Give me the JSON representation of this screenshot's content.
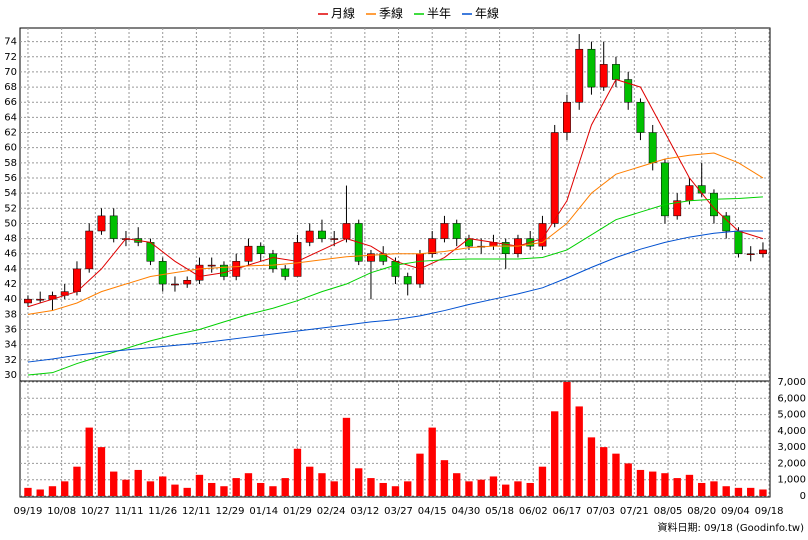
{
  "chart_data": {
    "type": "candlestick",
    "source": "資料日期: 09/18 (Goodinfo.tw)",
    "up_color": "#ff0000",
    "down_color": "#00c000",
    "volume_color": "#ff0000",
    "grid": true,
    "xlim": [
      -2.6,
      242.3
    ],
    "xticks": [
      {
        "value": 0,
        "label": "09/19"
      },
      {
        "value": 11,
        "label": "10/08"
      },
      {
        "value": 22,
        "label": "10/27"
      },
      {
        "value": 33,
        "label": "11/11"
      },
      {
        "value": 44,
        "label": "11/26"
      },
      {
        "value": 55,
        "label": "12/11"
      },
      {
        "value": 66,
        "label": "12/29"
      },
      {
        "value": 77,
        "label": "01/14"
      },
      {
        "value": 88,
        "label": "01/29"
      },
      {
        "value": 99,
        "label": "02/24"
      },
      {
        "value": 110,
        "label": "03/12"
      },
      {
        "value": 121,
        "label": "03/27"
      },
      {
        "value": 132,
        "label": "04/15"
      },
      {
        "value": 143,
        "label": "04/30"
      },
      {
        "value": 154,
        "label": "05/18"
      },
      {
        "value": 165,
        "label": "06/02"
      },
      {
        "value": 176,
        "label": "06/17"
      },
      {
        "value": 187,
        "label": "07/03"
      },
      {
        "value": 198,
        "label": "07/21"
      },
      {
        "value": 209,
        "label": "08/05"
      },
      {
        "value": 220,
        "label": "08/20"
      },
      {
        "value": 231,
        "label": "09/04"
      },
      {
        "value": 242,
        "label": "09/18"
      }
    ],
    "ylim": [
      29.2,
      75.8
    ],
    "yticks": [
      30,
      32,
      34,
      36,
      38,
      40,
      42,
      44,
      46,
      48,
      50,
      52,
      54,
      56,
      58,
      60,
      62,
      64,
      66,
      68,
      70,
      72,
      74
    ],
    "volume_ylim": [
      0,
      7000
    ],
    "volume_ticks": [
      0,
      {
        "value": 1000,
        "label": "1,000"
      },
      {
        "value": 2000,
        "label": "2,000"
      },
      {
        "value": 3000,
        "label": "3,000"
      },
      {
        "value": 4000,
        "label": "4,000"
      },
      {
        "value": 5000,
        "label": "5,000"
      },
      {
        "value": 6000,
        "label": "6,000"
      },
      {
        "value": 7000,
        "label": "7,000"
      }
    ],
    "x": [
      0,
      4,
      8,
      12,
      16,
      20,
      24,
      28,
      32,
      36,
      40,
      44,
      48,
      52,
      56,
      60,
      64,
      68,
      72,
      76,
      80,
      84,
      88,
      92,
      96,
      100,
      104,
      108,
      112,
      116,
      120,
      124,
      128,
      132,
      136,
      140,
      144,
      148,
      152,
      156,
      160,
      164,
      168,
      172,
      176,
      180,
      184,
      188,
      192,
      196,
      200,
      204,
      208,
      212,
      216,
      220,
      224,
      228,
      232,
      236,
      240
    ],
    "open": [
      39.5,
      40,
      40,
      40.5,
      41,
      44,
      49,
      51,
      48,
      48,
      47.5,
      45,
      42,
      42,
      42.5,
      44.5,
      44.5,
      43,
      45,
      47,
      46,
      44,
      43,
      47.5,
      49,
      48,
      48,
      50,
      45,
      46,
      45,
      43,
      42,
      46,
      48,
      50,
      48,
      47,
      47,
      47.5,
      46,
      48,
      47,
      50,
      62,
      66,
      73,
      68,
      71,
      69,
      66,
      62,
      58,
      51,
      53,
      55,
      54,
      51,
      49,
      46,
      46
    ],
    "high": [
      40.5,
      41,
      41,
      42,
      45,
      50,
      52,
      52,
      49,
      49.5,
      48,
      45.5,
      43,
      43,
      45.5,
      45.5,
      45,
      46,
      48,
      47.5,
      46.5,
      44.5,
      48.5,
      50,
      50.5,
      49,
      55,
      50.5,
      46.5,
      47,
      45.5,
      43.5,
      46.5,
      49,
      51,
      50.5,
      48.5,
      48,
      48.5,
      48,
      48.5,
      49,
      51,
      63,
      67,
      75,
      74,
      74,
      72,
      70,
      66.5,
      63,
      58.5,
      54,
      56,
      58,
      54.5,
      51.5,
      49.5,
      47,
      47.5
    ],
    "low": [
      39,
      39.5,
      38.5,
      40,
      40.5,
      43.5,
      48.5,
      47.5,
      47,
      47,
      44.5,
      41,
      41,
      41.5,
      42,
      43.5,
      42.5,
      42.5,
      44.5,
      45,
      43.5,
      42.5,
      43,
      47,
      47.5,
      47,
      47.5,
      44.5,
      40,
      44.5,
      42,
      40.5,
      41.5,
      45.5,
      47.5,
      47,
      46.5,
      46,
      46.5,
      44,
      45.5,
      46.5,
      46.5,
      49.5,
      61,
      65,
      67,
      67.5,
      68,
      65,
      61,
      57,
      50,
      50.5,
      52.5,
      53.5,
      50,
      48,
      45.5,
      45,
      45.5
    ],
    "close": [
      40,
      40,
      40.5,
      41,
      44,
      49,
      51,
      48,
      48,
      47.5,
      45,
      42,
      42,
      42.5,
      44.5,
      44.5,
      43,
      45,
      47,
      46,
      44,
      43,
      47.5,
      49,
      48,
      48,
      50,
      45,
      46,
      45,
      43,
      42,
      46,
      48,
      50,
      48,
      47,
      47,
      47.5,
      46,
      48,
      47,
      50,
      62,
      66,
      73,
      68,
      71,
      69,
      66,
      62,
      58,
      51,
      53,
      55,
      54,
      51,
      49,
      46,
      46,
      46.5
    ],
    "volume": [
      500,
      400,
      600,
      900,
      1800,
      4200,
      3000,
      1500,
      1000,
      1600,
      900,
      1200,
      700,
      500,
      1300,
      800,
      600,
      1100,
      1400,
      800,
      600,
      1100,
      2900,
      1800,
      1400,
      900,
      4800,
      1700,
      1100,
      800,
      600,
      900,
      2600,
      4200,
      2200,
      1400,
      900,
      1000,
      1200,
      700,
      900,
      800,
      1800,
      5200,
      7000,
      5500,
      3600,
      3000,
      2600,
      2000,
      1600,
      1500,
      1400,
      1100,
      1300,
      800,
      900,
      600,
      500,
      500,
      400
    ],
    "series": [
      {
        "name": "月線",
        "color": "#e00000",
        "x": [
          0,
          8,
          16,
          24,
          32,
          40,
          48,
          56,
          64,
          72,
          80,
          88,
          96,
          104,
          112,
          120,
          128,
          136,
          144,
          152,
          160,
          168,
          176,
          184,
          192,
          200,
          208,
          216,
          224,
          232,
          240
        ],
        "values": [
          39,
          40,
          41,
          44,
          48,
          47.5,
          45,
          43,
          43.5,
          44.5,
          45.5,
          45,
          46.5,
          48,
          47,
          45,
          44,
          45.5,
          48,
          47.5,
          47,
          48,
          53,
          63,
          69,
          68,
          62,
          56,
          52,
          49,
          48
        ]
      },
      {
        "name": "季線",
        "color": "#ff7f00",
        "x": [
          0,
          8,
          16,
          24,
          32,
          40,
          48,
          56,
          64,
          72,
          80,
          88,
          96,
          104,
          112,
          120,
          128,
          136,
          144,
          152,
          160,
          168,
          176,
          184,
          192,
          200,
          208,
          216,
          224,
          232,
          240
        ],
        "values": [
          38,
          38.5,
          39.5,
          41,
          42,
          43,
          43.5,
          44,
          44.2,
          44.4,
          44.5,
          44.8,
          45.2,
          45.6,
          45.8,
          46,
          46,
          46.3,
          46.8,
          47,
          47,
          47.5,
          50,
          54,
          56.5,
          57.5,
          58.5,
          59,
          59.3,
          58,
          56
        ]
      },
      {
        "name": "半年",
        "color": "#00d000",
        "x": [
          0,
          8,
          16,
          24,
          32,
          40,
          48,
          56,
          64,
          72,
          80,
          88,
          96,
          104,
          112,
          120,
          128,
          136,
          144,
          152,
          160,
          168,
          176,
          184,
          192,
          200,
          208,
          216,
          224,
          232,
          240
        ],
        "values": [
          30,
          30.3,
          31.5,
          32.5,
          33.5,
          34.5,
          35.3,
          36,
          37,
          38,
          38.8,
          39.8,
          41,
          42,
          43.5,
          44.5,
          45,
          45.2,
          45.3,
          45.3,
          45.3,
          45.5,
          46.5,
          48.5,
          50.5,
          51.5,
          52.5,
          53,
          53.2,
          53.3,
          53.5
        ]
      },
      {
        "name": "年線",
        "color": "#0050d0",
        "x": [
          0,
          8,
          16,
          24,
          32,
          40,
          48,
          56,
          64,
          72,
          80,
          88,
          96,
          104,
          112,
          120,
          128,
          136,
          144,
          152,
          160,
          168,
          176,
          184,
          192,
          200,
          208,
          216,
          224,
          232,
          240
        ],
        "values": [
          31.7,
          32.1,
          32.6,
          33,
          33.3,
          33.6,
          33.9,
          34.2,
          34.6,
          35,
          35.4,
          35.8,
          36.2,
          36.6,
          37,
          37.3,
          37.8,
          38.5,
          39.3,
          40,
          40.7,
          41.5,
          42.8,
          44.2,
          45.5,
          46.6,
          47.5,
          48.2,
          48.7,
          49,
          49
        ]
      }
    ]
  }
}
